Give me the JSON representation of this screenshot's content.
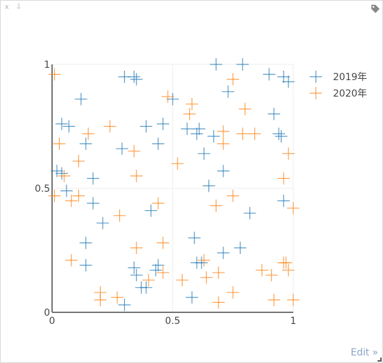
{
  "toolbar": {
    "close_label": "x",
    "download_label": "⇩",
    "tag_icon": "tag-icon"
  },
  "edit_link": "Edit »",
  "colors": {
    "series1": "#1f77b4",
    "series2": "#ff7f0e",
    "grid": "#eeeeee",
    "axis": "#444444"
  },
  "chart_data": {
    "type": "scatter",
    "marker": "cross",
    "xlim": [
      0,
      1
    ],
    "ylim": [
      0,
      1
    ],
    "x_ticks": [
      {
        "value": 0,
        "label": "0"
      },
      {
        "value": 0.5,
        "label": "0.5"
      },
      {
        "value": 1,
        "label": "1"
      }
    ],
    "y_ticks": [
      {
        "value": 0,
        "label": "0"
      },
      {
        "value": 0.5,
        "label": "0.5"
      },
      {
        "value": 1,
        "label": "1"
      }
    ],
    "grid": true,
    "legend_position": "top-right",
    "series": [
      {
        "name": "2019年",
        "color": "#1f77b4",
        "points": [
          [
            0.68,
            1.0
          ],
          [
            0.79,
            1.0
          ],
          [
            0.3,
            0.95
          ],
          [
            0.35,
            0.94
          ],
          [
            0.34,
            0.95
          ],
          [
            0.9,
            0.96
          ],
          [
            0.96,
            0.95
          ],
          [
            0.98,
            0.93
          ],
          [
            0.12,
            0.86
          ],
          [
            0.5,
            0.86
          ],
          [
            0.73,
            0.89
          ],
          [
            0.04,
            0.76
          ],
          [
            0.07,
            0.75
          ],
          [
            0.92,
            0.8
          ],
          [
            0.39,
            0.75
          ],
          [
            0.46,
            0.76
          ],
          [
            0.56,
            0.74
          ],
          [
            0.61,
            0.74
          ],
          [
            0.6,
            0.72
          ],
          [
            0.67,
            0.71
          ],
          [
            0.94,
            0.72
          ],
          [
            0.95,
            0.71
          ],
          [
            0.14,
            0.68
          ],
          [
            0.29,
            0.66
          ],
          [
            0.44,
            0.68
          ],
          [
            0.63,
            0.64
          ],
          [
            0.02,
            0.57
          ],
          [
            0.04,
            0.56
          ],
          [
            0.06,
            0.49
          ],
          [
            0.17,
            0.54
          ],
          [
            0.71,
            0.57
          ],
          [
            0.65,
            0.51
          ],
          [
            0.17,
            0.44
          ],
          [
            0.41,
            0.41
          ],
          [
            0.82,
            0.4
          ],
          [
            0.96,
            0.45
          ],
          [
            0.21,
            0.36
          ],
          [
            0.59,
            0.3
          ],
          [
            0.14,
            0.28
          ],
          [
            0.78,
            0.26
          ],
          [
            0.71,
            0.24
          ],
          [
            0.14,
            0.19
          ],
          [
            0.34,
            0.18
          ],
          [
            0.35,
            0.15
          ],
          [
            0.43,
            0.17
          ],
          [
            0.44,
            0.19
          ],
          [
            0.6,
            0.2
          ],
          [
            0.62,
            0.2
          ],
          [
            0.37,
            0.1
          ],
          [
            0.39,
            0.1
          ],
          [
            0.58,
            0.06
          ],
          [
            0.3,
            0.03
          ]
        ]
      },
      {
        "name": "2020年",
        "color": "#ff7f0e",
        "points": [
          [
            0.01,
            0.96
          ],
          [
            0.75,
            0.94
          ],
          [
            0.48,
            0.87
          ],
          [
            0.58,
            0.84
          ],
          [
            0.57,
            0.8
          ],
          [
            0.8,
            0.82
          ],
          [
            0.15,
            0.72
          ],
          [
            0.24,
            0.75
          ],
          [
            0.71,
            0.73
          ],
          [
            0.79,
            0.72
          ],
          [
            0.84,
            0.72
          ],
          [
            0.03,
            0.68
          ],
          [
            0.34,
            0.65
          ],
          [
            0.71,
            0.68
          ],
          [
            0.98,
            0.64
          ],
          [
            0.11,
            0.61
          ],
          [
            0.52,
            0.6
          ],
          [
            0.05,
            0.55
          ],
          [
            0.35,
            0.55
          ],
          [
            0.96,
            0.54
          ],
          [
            0.01,
            0.47
          ],
          [
            0.08,
            0.45
          ],
          [
            0.11,
            0.47
          ],
          [
            0.44,
            0.44
          ],
          [
            0.68,
            0.43
          ],
          [
            0.75,
            0.47
          ],
          [
            1.0,
            0.42
          ],
          [
            0.28,
            0.39
          ],
          [
            0.46,
            0.28
          ],
          [
            0.35,
            0.26
          ],
          [
            0.08,
            0.21
          ],
          [
            0.63,
            0.21
          ],
          [
            0.96,
            0.2
          ],
          [
            0.97,
            0.2
          ],
          [
            0.87,
            0.17
          ],
          [
            0.91,
            0.15
          ],
          [
            0.98,
            0.17
          ],
          [
            0.46,
            0.16
          ],
          [
            0.69,
            0.16
          ],
          [
            0.54,
            0.13
          ],
          [
            0.64,
            0.14
          ],
          [
            0.4,
            0.13
          ],
          [
            0.2,
            0.08
          ],
          [
            0.2,
            0.05
          ],
          [
            0.27,
            0.06
          ],
          [
            0.75,
            0.08
          ],
          [
            0.69,
            0.04
          ],
          [
            0.92,
            0.05
          ],
          [
            1.0,
            0.05
          ]
        ]
      }
    ]
  }
}
